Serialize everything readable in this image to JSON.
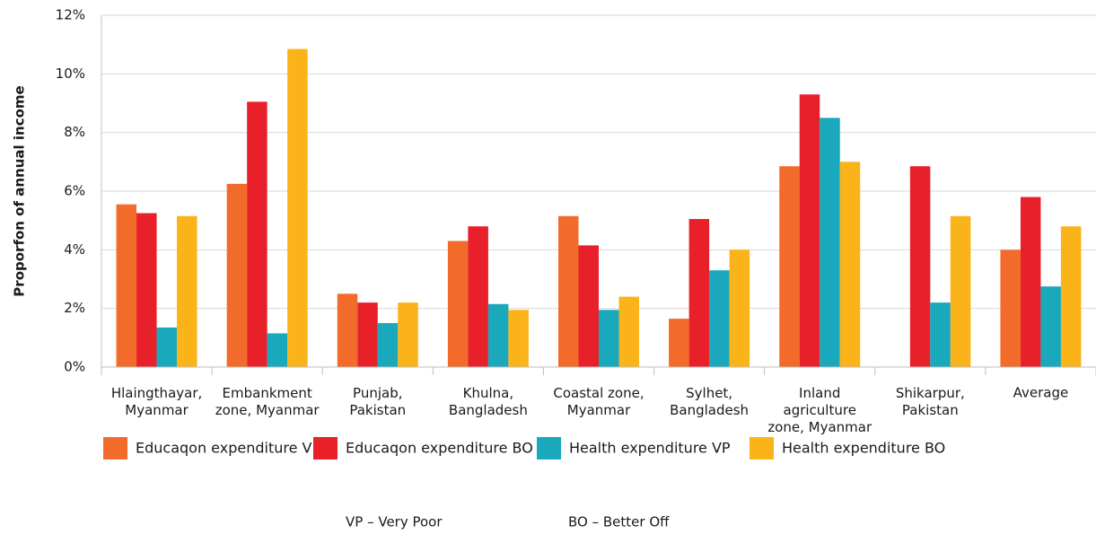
{
  "chart_data": {
    "type": "bar",
    "y_label": "Proporfon of annual income",
    "categories": [
      "Hlaingthayar,\nMyanmar",
      "Embankment\nzone, Myanmar",
      "Punjab,\nPakistan",
      "Khulna,\nBangladesh",
      "Coastal zone,\nMyanmar",
      "Sylhet,\nBangladesh",
      "Inland\nagriculture\nzone, Myanmar",
      "Shikarpur,\nPakistan",
      "Average"
    ],
    "series": [
      {
        "name": "Educaqon expenditure VP",
        "color": "#f26b2a",
        "values": [
          5.55,
          6.25,
          2.5,
          4.3,
          5.15,
          1.65,
          6.85,
          null,
          4.0
        ]
      },
      {
        "name": "Educaqon expenditure BO",
        "color": "#e8202a",
        "values": [
          5.25,
          9.05,
          2.2,
          4.8,
          4.15,
          5.05,
          9.3,
          6.85,
          5.8
        ]
      },
      {
        "name": "Health expenditure VP",
        "color": "#1aa8bc",
        "values": [
          1.35,
          1.15,
          1.5,
          2.15,
          1.95,
          3.3,
          8.5,
          2.2,
          2.75
        ]
      },
      {
        "name": "Health expenditure BO",
        "color": "#fbb31a",
        "values": [
          5.15,
          10.85,
          2.2,
          1.95,
          2.4,
          4.0,
          7.0,
          5.15,
          4.8
        ]
      }
    ],
    "ylim": [
      0,
      12
    ],
    "yticks": [
      {
        "value": 0,
        "label": "0%"
      },
      {
        "value": 2,
        "label": "2%"
      },
      {
        "value": 4,
        "label": "4%"
      },
      {
        "value": 6,
        "label": "6%"
      },
      {
        "value": 8,
        "label": "8%"
      },
      {
        "value": 10,
        "label": "10%"
      },
      {
        "value": 12,
        "label": "12%"
      }
    ],
    "grid": true,
    "notes": [
      "VP – Very Poor",
      "BO – Better Off"
    ]
  }
}
